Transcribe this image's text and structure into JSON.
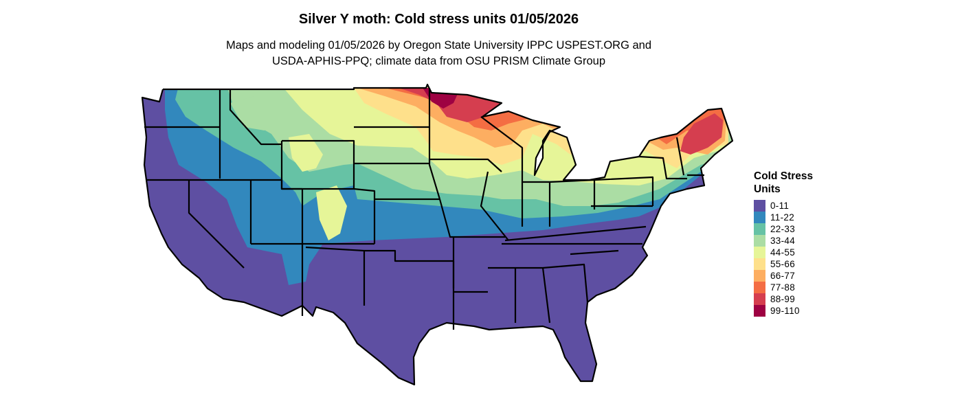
{
  "title": "Silver Y moth: Cold stress units 01/05/2026",
  "subtitle": {
    "line1": "Maps and modeling 01/05/2026 by Oregon State University IPPC USPEST.ORG and",
    "line2": "USDA-APHIS-PPQ; climate data from OSU PRISM Climate Group"
  },
  "legend": {
    "title_line1": "Cold Stress",
    "title_line2": "Units",
    "items": [
      {
        "label": "0-11",
        "color": "#5E4FA2"
      },
      {
        "label": "11-22",
        "color": "#3288BD"
      },
      {
        "label": "22-33",
        "color": "#66C2A5"
      },
      {
        "label": "33-44",
        "color": "#ABDDA4"
      },
      {
        "label": "44-55",
        "color": "#E6F598"
      },
      {
        "label": "55-66",
        "color": "#FEE08B"
      },
      {
        "label": "66-77",
        "color": "#FDAE61"
      },
      {
        "label": "77-88",
        "color": "#F46D43"
      },
      {
        "label": "88-99",
        "color": "#D53E4F"
      },
      {
        "label": "99-110",
        "color": "#9E0142"
      }
    ]
  },
  "map": {
    "region": "contiguous-united-states",
    "background_color": "#FFFFFF",
    "border_color": "#000000"
  }
}
